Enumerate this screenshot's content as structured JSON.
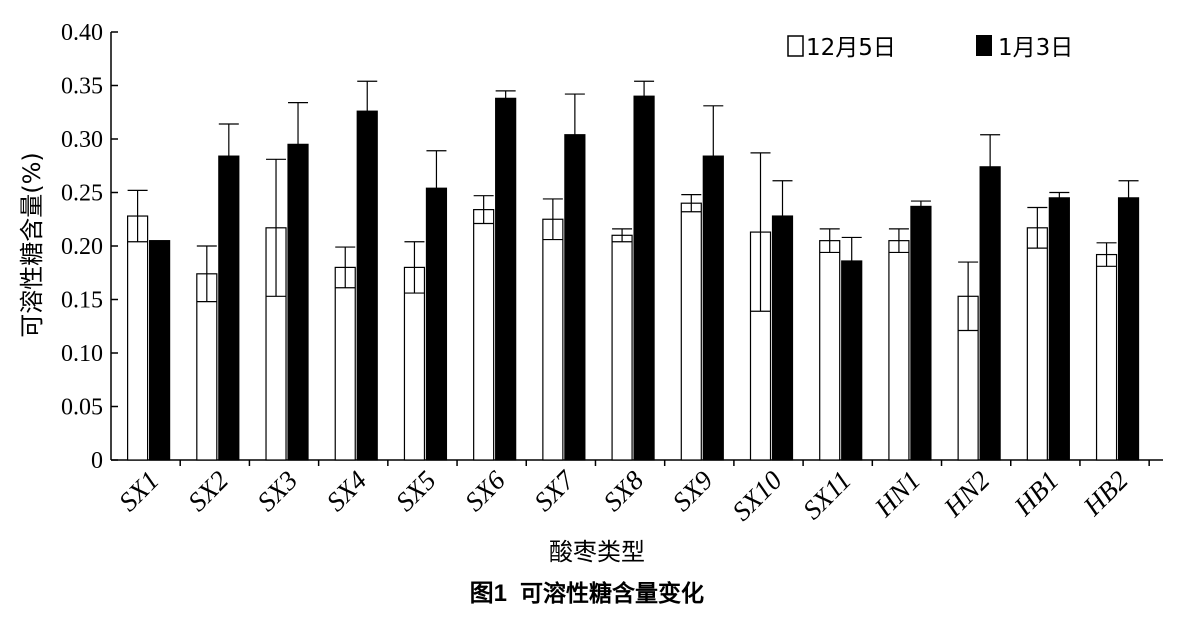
{
  "chart_data": {
    "type": "bar",
    "ylabel": "可溶性糖含量(%)",
    "xlabel": "酸枣类型",
    "caption": {
      "number": "图1",
      "title": "可溶性糖含量变化"
    },
    "ylim": [
      0,
      0.4
    ],
    "yticks": [
      "0",
      "0.05",
      "0.10",
      "0.15",
      "0.20",
      "0.25",
      "0.30",
      "0.35",
      "0.40"
    ],
    "grid": false,
    "legend_position": "top-right",
    "categories": [
      "SX1",
      "SX2",
      "SX3",
      "SX4",
      "SX5",
      "SX6",
      "SX7",
      "SX8",
      "SX9",
      "SX10",
      "SX11",
      "HN1",
      "HN2",
      "HB1",
      "HB2"
    ],
    "series": [
      {
        "name": "12月5日",
        "fill": "#ffffff",
        "values": [
          0.228,
          0.174,
          0.217,
          0.18,
          0.18,
          0.234,
          0.225,
          0.21,
          0.24,
          0.213,
          0.205,
          0.205,
          0.153,
          0.217,
          0.192
        ],
        "errors": [
          0.024,
          0.026,
          0.064,
          0.019,
          0.024,
          0.013,
          0.019,
          0.006,
          0.008,
          0.074,
          0.011,
          0.011,
          0.032,
          0.019,
          0.011
        ]
      },
      {
        "name": "1月3日",
        "fill": "#000000",
        "values": [
          0.205,
          0.284,
          0.295,
          0.326,
          0.254,
          0.338,
          0.304,
          0.34,
          0.284,
          0.228,
          0.186,
          0.237,
          0.274,
          0.245,
          0.245
        ],
        "errors": [
          0.0,
          0.03,
          0.039,
          0.028,
          0.035,
          0.007,
          0.038,
          0.014,
          0.047,
          0.033,
          0.022,
          0.005,
          0.03,
          0.005,
          0.016
        ]
      }
    ]
  }
}
